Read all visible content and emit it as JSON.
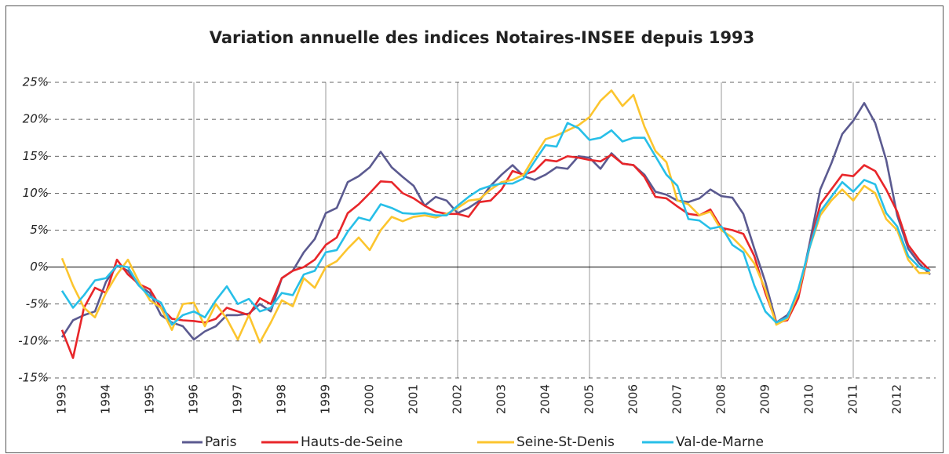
{
  "chart_data": {
    "type": "line",
    "title": "Variation annuelle des indices Notaires-INSEE depuis 1993",
    "categories": [
      "1993",
      null,
      null,
      null,
      "1994",
      null,
      null,
      null,
      "1995",
      null,
      null,
      null,
      "1996",
      null,
      null,
      null,
      "1997",
      null,
      null,
      null,
      "1998",
      null,
      null,
      null,
      "1999",
      null,
      null,
      null,
      "2000",
      null,
      null,
      null,
      "2001",
      null,
      null,
      null,
      "2002",
      null,
      null,
      null,
      "2003",
      null,
      null,
      null,
      "2004",
      null,
      null,
      null,
      "2005",
      null,
      null,
      null,
      "2006",
      null,
      null,
      null,
      "2007",
      null,
      null,
      null,
      "2008",
      null,
      null,
      null,
      "2009",
      null,
      null,
      null,
      "2010",
      null,
      null,
      null,
      "2011",
      null,
      null,
      null,
      "2012",
      null,
      null,
      null
    ],
    "series": [
      {
        "name": "Paris",
        "color": "#5b5a90",
        "values": [
          -9.5,
          -7.2,
          -6.5,
          -6.0,
          -2.0,
          0.2,
          -0.5,
          -2.5,
          -3.5,
          -6.5,
          -7.5,
          -8.0,
          -9.8,
          -8.7,
          -8.0,
          -6.5,
          -6.5,
          -6.3,
          -5.0,
          -6.0,
          -1.5,
          -0.5,
          2.0,
          3.8,
          7.3,
          8.0,
          11.5,
          12.3,
          13.5,
          15.6,
          13.5,
          12.2,
          11.0,
          8.3,
          9.5,
          9.0,
          7.3,
          8.0,
          9.0,
          11.0,
          12.5,
          13.8,
          12.3,
          11.8,
          12.5,
          13.5,
          13.3,
          15.0,
          14.8,
          13.3,
          15.4,
          14.0,
          13.8,
          12.5,
          10.2,
          9.8,
          9.0,
          8.8,
          9.3,
          10.5,
          9.6,
          9.4,
          7.2,
          2.5,
          -2.0,
          -7.5,
          -6.5,
          -4.0,
          3.0,
          10.5,
          14.0,
          18.0,
          19.8,
          22.2,
          19.5,
          14.5,
          7.0,
          2.5,
          0.5,
          -1.0
        ]
      },
      {
        "name": "Hauts-de-Seine",
        "color": "#e8262a",
        "values": [
          -8.5,
          -12.3,
          -5.5,
          -2.8,
          -3.5,
          1.0,
          -1.0,
          -2.3,
          -3.0,
          -5.5,
          -7.0,
          -7.2,
          -7.3,
          -7.5,
          -7.0,
          -5.5,
          -6.0,
          -6.5,
          -4.2,
          -5.0,
          -1.5,
          -0.5,
          0.0,
          1.0,
          3.0,
          4.0,
          7.3,
          8.5,
          10.0,
          11.6,
          11.5,
          10.0,
          9.3,
          8.3,
          7.5,
          7.2,
          7.2,
          6.8,
          8.8,
          9.0,
          10.5,
          13.0,
          12.5,
          13.0,
          14.5,
          14.3,
          15.0,
          14.8,
          14.5,
          14.3,
          15.2,
          14.0,
          13.8,
          12.2,
          9.5,
          9.3,
          8.2,
          7.2,
          7.0,
          7.8,
          5.3,
          5.0,
          4.5,
          1.5,
          -3.5,
          -7.5,
          -7.2,
          -4.2,
          2.5,
          8.5,
          10.5,
          12.5,
          12.3,
          13.8,
          13.0,
          10.5,
          7.5,
          3.0,
          1.0,
          -0.5
        ]
      },
      {
        "name": "Seine-St-Denis",
        "color": "#fcc52e",
        "values": [
          1.2,
          -2.5,
          -5.5,
          -6.8,
          -3.5,
          -1.0,
          1.0,
          -2.0,
          -4.5,
          -5.5,
          -8.5,
          -5.0,
          -4.8,
          -8.0,
          -5.0,
          -7.0,
          -9.8,
          -6.5,
          -10.2,
          -7.5,
          -4.5,
          -5.3,
          -1.5,
          -2.8,
          0.0,
          0.8,
          2.5,
          4.0,
          2.3,
          5.0,
          6.8,
          6.2,
          6.8,
          7.0,
          6.7,
          7.2,
          8.0,
          9.0,
          9.2,
          10.5,
          11.5,
          11.8,
          12.5,
          15.0,
          17.3,
          17.8,
          18.5,
          19.2,
          20.3,
          22.5,
          23.9,
          21.8,
          23.3,
          19.0,
          15.7,
          14.2,
          9.0,
          8.5,
          7.0,
          7.5,
          5.0,
          4.0,
          2.5,
          0.5,
          -3.0,
          -7.8,
          -7.0,
          -3.5,
          2.5,
          7.0,
          9.0,
          10.5,
          9.0,
          11.0,
          10.0,
          6.5,
          5.0,
          1.0,
          -0.8,
          -0.8
        ]
      },
      {
        "name": "Val-de-Marne",
        "color": "#27bfe8",
        "values": [
          -3.2,
          -5.5,
          -3.8,
          -1.8,
          -1.5,
          0.2,
          0.0,
          -2.5,
          -4.0,
          -4.8,
          -7.8,
          -6.5,
          -6.0,
          -6.8,
          -4.5,
          -2.6,
          -5.0,
          -4.3,
          -6.0,
          -5.5,
          -3.5,
          -3.8,
          -1.0,
          -0.5,
          2.0,
          2.3,
          4.8,
          6.7,
          6.3,
          8.5,
          8.0,
          7.3,
          7.2,
          7.3,
          7.0,
          7.0,
          8.3,
          9.5,
          10.5,
          11.0,
          11.3,
          11.3,
          12.0,
          14.3,
          16.5,
          16.3,
          19.5,
          18.8,
          17.2,
          17.5,
          18.5,
          17.0,
          17.5,
          17.5,
          15.0,
          12.5,
          11.0,
          6.5,
          6.3,
          5.2,
          5.5,
          3.0,
          2.0,
          -2.5,
          -6.0,
          -7.5,
          -6.8,
          -3.0,
          2.5,
          7.5,
          9.5,
          11.5,
          10.2,
          11.8,
          11.2,
          7.3,
          5.5,
          1.5,
          0.0,
          -0.5
        ]
      }
    ],
    "ylim": [
      -15,
      25
    ],
    "yticks": [
      {
        "value": -15,
        "label": "-15%"
      },
      {
        "value": -10,
        "label": "-10%"
      },
      {
        "value": -5,
        "label": "-5%"
      },
      {
        "value": 0,
        "label": "0%"
      },
      {
        "value": 5,
        "label": "5%"
      },
      {
        "value": 10,
        "label": "10%"
      },
      {
        "value": 15,
        "label": "15%"
      },
      {
        "value": 20,
        "label": "20%"
      },
      {
        "value": 25,
        "label": "25%"
      }
    ],
    "grid": true,
    "legend": "bottom"
  }
}
